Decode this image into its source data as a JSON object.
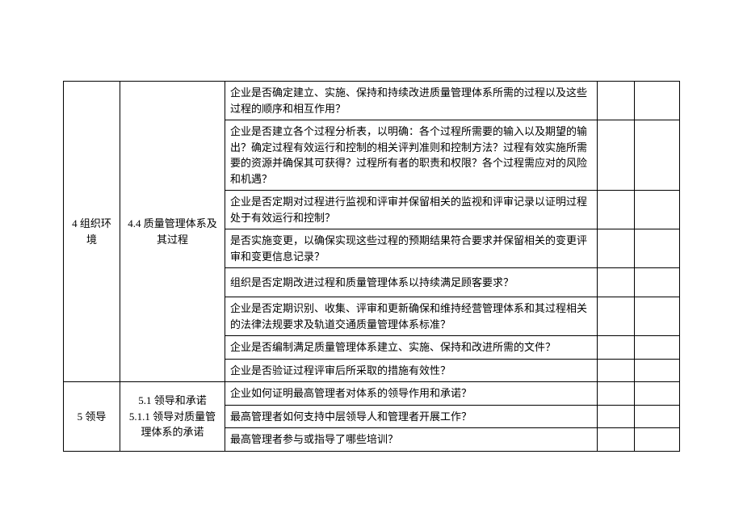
{
  "table": {
    "groups": [
      {
        "col1": "4 组织环境",
        "col2": "4.4 质量管理体系及其过程",
        "rows": [
          "企业是否确定建立、实施、保持和持续改进质量管理体系所需的过程以及这些过程的顺序和相互作用？",
          "企业是否建立各个过程分析表，以明确：各个过程所需要的输入以及期望的输出？确定过程有效运行和控制的相关评判准则和控制方法？过程有效实施所需要的资源并确保其可获得？过程所有者的职责和权限？各个过程需应对的风险和机遇？",
          "企业是否定期对过程进行监视和评审并保留相关的监视和评审记录以证明过程处于有效运行和控制？",
          "是否实施变更，以确保实现这些过程的预期结果符合要求并保留相关的变更评审和变更信息记录？",
          "组织是否定期改进过程和质量管理体系以持续满足顾客要求？",
          "企业是否定期识别、收集、评审和更新确保和维持经营管理体系和其过程相关的法律法规要求及轨道交通质量管理体系标准？",
          "企业是否编制满足质量管理体系建立、实施、保持和改进所需的文件？",
          "企业是否验证过程评审后所采取的措施有效性？"
        ]
      },
      {
        "col1": "5 领导",
        "col2": "5.1 领导和承诺\n5.1.1 领导对质量管理体系的承诺",
        "rows": [
          "企业如何证明最高管理者对体系的领导作用和承诺？",
          "最高管理者如何支持中层领导人和管理者开展工作？",
          "最高管理者参与或指导了哪些培训？"
        ]
      }
    ]
  },
  "row_heights": {
    "g0": [
      "",
      "70px",
      "",
      "",
      "36px",
      "46px",
      "",
      ""
    ],
    "g1": [
      "",
      "",
      ""
    ]
  }
}
